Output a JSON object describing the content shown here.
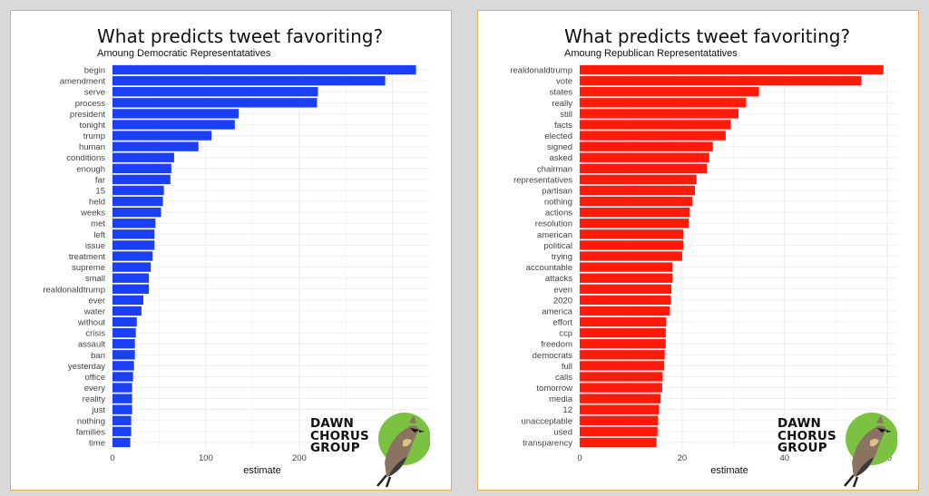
{
  "logo": {
    "line1": "DAWN",
    "line2": "CHORUS",
    "line3": "GROUP",
    "icon": "bird-icon",
    "circle_color": "#7cc242"
  },
  "chart_data": [
    {
      "type": "bar",
      "orientation": "horizontal",
      "title": "What predicts tweet favoriting?",
      "subtitle": "Amoung Democratic Representatatives",
      "xlabel": "estimate",
      "ylabel": "",
      "color": "#1a3ff5",
      "xlim": [
        0,
        340
      ],
      "xticks": [
        0,
        100,
        200,
        300
      ],
      "grid": true,
      "categories": [
        "begin",
        "amendment",
        "serve",
        "process",
        "president",
        "tonight",
        "trump",
        "human",
        "conditions",
        "enough",
        "far",
        "15",
        "held",
        "weeks",
        "met",
        "left",
        "issue",
        "treatment",
        "supreme",
        "small",
        "realdonaldtrump",
        "ever",
        "water",
        "without",
        "crisis",
        "assault",
        "ban",
        "yesterday",
        "office",
        "every",
        "reality",
        "just",
        "nothing",
        "families",
        "time"
      ],
      "values": [
        325,
        292,
        220,
        219,
        135,
        131,
        106,
        92,
        66,
        63,
        62,
        55,
        54,
        52,
        46,
        45,
        45,
        43,
        41,
        39,
        39,
        33,
        31,
        26,
        25,
        24,
        24,
        23,
        22,
        21,
        21,
        21,
        20,
        20,
        19
      ]
    },
    {
      "type": "bar",
      "orientation": "horizontal",
      "title": "What predicts tweet favoriting?",
      "subtitle": "Amoung Republican Representatatives",
      "xlabel": "estimate",
      "ylabel": "",
      "color": "#ff1a0a",
      "xlim": [
        0,
        62
      ],
      "xticks": [
        0,
        20,
        40,
        60
      ],
      "grid": true,
      "categories": [
        "realdonaldtrump",
        "vote",
        "states",
        "really",
        "still",
        "facts",
        "elected",
        "signed",
        "asked",
        "chairman",
        "representatives",
        "partisan",
        "nothing",
        "actions",
        "resolution",
        "american",
        "political",
        "trying",
        "accountable",
        "attacks",
        "even",
        "2020",
        "america",
        "effort",
        "ccp",
        "freedom",
        "democrats",
        "full",
        "calls",
        "tomorrow",
        "media",
        "12",
        "unacceptable",
        "used",
        "transparency"
      ],
      "values": [
        59.3,
        55.0,
        35.0,
        32.5,
        31.0,
        29.5,
        28.5,
        26.0,
        25.3,
        24.8,
        22.8,
        22.5,
        22.0,
        21.5,
        21.3,
        20.2,
        20.2,
        20.0,
        18.1,
        18.1,
        17.9,
        17.8,
        17.6,
        16.9,
        16.8,
        16.8,
        16.6,
        16.5,
        16.2,
        16.1,
        15.8,
        15.5,
        15.3,
        15.2,
        15.0
      ]
    }
  ]
}
